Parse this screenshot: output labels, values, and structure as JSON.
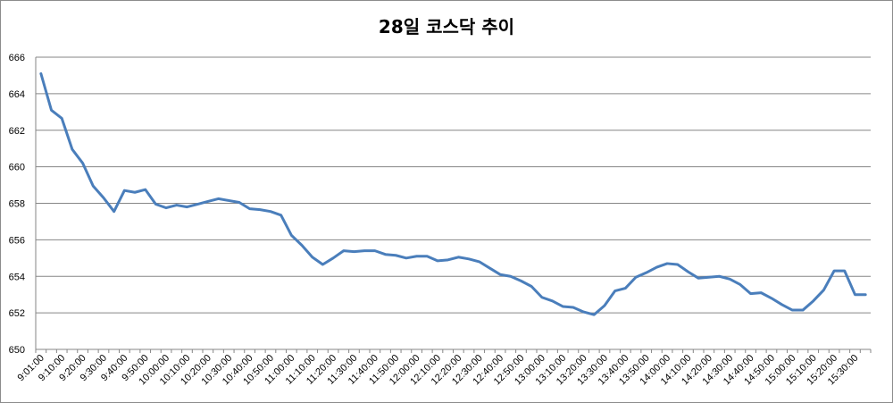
{
  "chart_data": {
    "type": "line",
    "title": "28일 코스닥 추이",
    "xlabel": "",
    "ylabel": "",
    "ylim": [
      650,
      666
    ],
    "yticks": [
      650,
      652,
      654,
      656,
      658,
      660,
      662,
      664,
      666
    ],
    "grid": "horizontal",
    "legend": "none",
    "line_color": "#4a7ebb",
    "x_tick_labels": [
      "9:01:00",
      "9:10:00",
      "9:20:00",
      "9:30:00",
      "9:40:00",
      "9:50:00",
      "10:00:00",
      "10:10:00",
      "10:20:00",
      "10:30:00",
      "10:40:00",
      "10:50:00",
      "11:00:00",
      "11:10:00",
      "11:20:00",
      "11:30:00",
      "11:40:00",
      "11:50:00",
      "12:00:00",
      "12:10:00",
      "12:20:00",
      "12:30:00",
      "12:40:00",
      "12:50:00",
      "13:00:00",
      "13:10:00",
      "13:20:00",
      "13:30:00",
      "13:40:00",
      "13:50:00",
      "14:00:00",
      "14:10:00",
      "14:20:00",
      "14:30:00",
      "14:40:00",
      "14:50:00",
      "15:00:00",
      "15:10:00",
      "15:20:00",
      "15:30:00"
    ],
    "series": [
      {
        "values": [
          665.1,
          663.1,
          662.65,
          660.95,
          660.2,
          658.95,
          658.3,
          657.55,
          658.7,
          658.6,
          658.75,
          657.95,
          657.75,
          657.9,
          657.8,
          657.95,
          658.1,
          658.25,
          658.15,
          658.05,
          657.7,
          657.65,
          657.55,
          657.35,
          656.25,
          655.7,
          655.05,
          654.65,
          655.0,
          655.4,
          655.35,
          655.4,
          655.4,
          655.2,
          655.15,
          655.0,
          655.1,
          655.1,
          654.85,
          654.9,
          655.05,
          654.95,
          654.8,
          654.45,
          654.1,
          654.0,
          653.75,
          653.45,
          652.85,
          652.65,
          652.35,
          652.3,
          652.05,
          651.9,
          652.4,
          653.2,
          653.35,
          653.95,
          654.2,
          654.5,
          654.7,
          654.65,
          654.25,
          653.9,
          653.95,
          654.0,
          653.85,
          653.55,
          653.05,
          653.1,
          652.8,
          652.45,
          652.15,
          652.15,
          652.65,
          653.25,
          654.3,
          654.3,
          653.0,
          653.0
        ]
      }
    ]
  }
}
